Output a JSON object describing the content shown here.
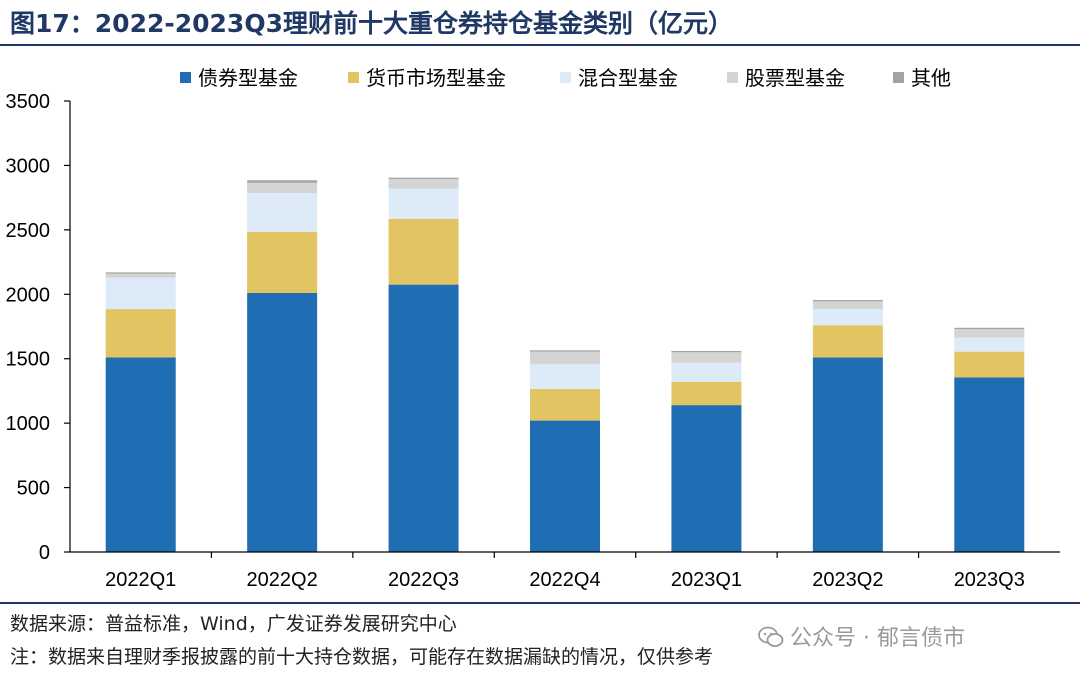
{
  "title": "图17：2022-2023Q3理财前十大重仓券持仓基金类别（亿元）",
  "source": "数据来源：普益标准，Wind，广发证券发展研究中心",
  "note": "注：数据来自理财季报披露的前十大持仓数据，可能存在数据漏缺的情况，仅供参考",
  "watermark": "公众号 · 郁言债市",
  "chart_data": {
    "type": "bar",
    "stacked": true,
    "title": "",
    "xlabel": "",
    "ylabel": "",
    "categories": [
      "2022Q1",
      "2022Q2",
      "2022Q3",
      "2022Q4",
      "2023Q1",
      "2023Q2",
      "2023Q3"
    ],
    "ylim": [
      0,
      3500
    ],
    "yticks": [
      0,
      500,
      1000,
      1500,
      2000,
      2500,
      3000,
      3500
    ],
    "grid": false,
    "legend_position": "top",
    "series": [
      {
        "name": "债券型基金",
        "color": "#1f6db3",
        "values": [
          1510,
          2010,
          2075,
          1020,
          1140,
          1510,
          1355
        ]
      },
      {
        "name": "货币市场型基金",
        "color": "#e3c462",
        "values": [
          375,
          475,
          510,
          245,
          180,
          250,
          200
        ]
      },
      {
        "name": "混合型基金",
        "color": "#ddeaf7",
        "values": [
          245,
          300,
          235,
          195,
          150,
          125,
          110
        ]
      },
      {
        "name": "股票型基金",
        "color": "#d4d4d4",
        "values": [
          30,
          80,
          75,
          95,
          80,
          60,
          65
        ]
      },
      {
        "name": "其他",
        "color": "#a3a3a3",
        "values": [
          10,
          20,
          10,
          10,
          10,
          10,
          10
        ]
      }
    ]
  }
}
